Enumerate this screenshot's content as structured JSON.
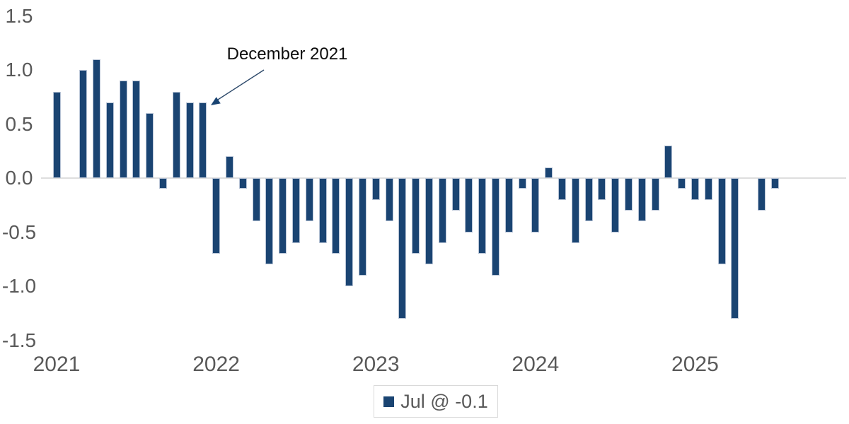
{
  "chart_data": {
    "type": "bar",
    "title": "",
    "x": [
      "Jan 2021",
      "Feb 2021",
      "Mar 2021",
      "Apr 2021",
      "May 2021",
      "Jun 2021",
      "Jul 2021",
      "Aug 2021",
      "Sep 2021",
      "Oct 2021",
      "Nov 2021",
      "Dec 2021",
      "Jan 2022",
      "Feb 2022",
      "Mar 2022",
      "Apr 2022",
      "May 2022",
      "Jun 2022",
      "Jul 2022",
      "Aug 2022",
      "Sep 2022",
      "Oct 2022",
      "Nov 2022",
      "Dec 2022",
      "Jan 2023",
      "Feb 2023",
      "Mar 2023",
      "Apr 2023",
      "May 2023",
      "Jun 2023",
      "Jul 2023",
      "Aug 2023",
      "Sep 2023",
      "Oct 2023",
      "Nov 2023",
      "Dec 2023",
      "Jan 2024",
      "Feb 2024",
      "Mar 2024",
      "Apr 2024",
      "May 2024",
      "Jun 2024",
      "Jul 2024",
      "Aug 2024",
      "Sep 2024",
      "Oct 2024",
      "Nov 2024",
      "Dec 2024",
      "Jan 2025",
      "Feb 2025",
      "Mar 2025",
      "Apr 2025",
      "May 2025",
      "Jun 2025",
      "Jul 2025"
    ],
    "values": [
      0.8,
      0.0,
      1.0,
      1.1,
      0.7,
      0.9,
      0.9,
      0.6,
      -0.1,
      0.8,
      0.7,
      0.7,
      -0.7,
      0.2,
      -0.1,
      -0.4,
      -0.8,
      -0.7,
      -0.6,
      -0.4,
      -0.6,
      -0.7,
      -1.0,
      -0.9,
      -0.2,
      -0.4,
      -1.3,
      -0.7,
      -0.8,
      -0.6,
      -0.3,
      -0.5,
      -0.7,
      -0.9,
      -0.5,
      -0.1,
      -0.5,
      0.1,
      -0.2,
      -0.6,
      -0.4,
      -0.2,
      -0.5,
      -0.3,
      -0.4,
      -0.3,
      0.3,
      -0.1,
      -0.2,
      -0.2,
      -0.8,
      -1.3,
      0.0,
      -0.3,
      -0.1
    ],
    "ylim": [
      -1.5,
      1.5
    ],
    "y_ticks": [
      "1.5",
      "1.0",
      "0.5",
      "0.0",
      "-0.5",
      "-1.0",
      "-1.5"
    ],
    "x_ticks": [
      "2021",
      "2022",
      "2023",
      "2024",
      "2025"
    ],
    "grid": "zero-line-only",
    "legend": {
      "label": "Jul @ -0.1",
      "position": "bottom-center"
    },
    "annotation": {
      "text": "December 2021",
      "target_month": "Dec 2021",
      "target_value": 0.7
    },
    "colors": {
      "bar": "#1a4472",
      "bar_border": "#b7c3d5",
      "axis_text": "#595959",
      "zero_line": "#dedede",
      "annotation_text": "#0d0d0d",
      "legend_border": "#d9d9d9"
    }
  }
}
